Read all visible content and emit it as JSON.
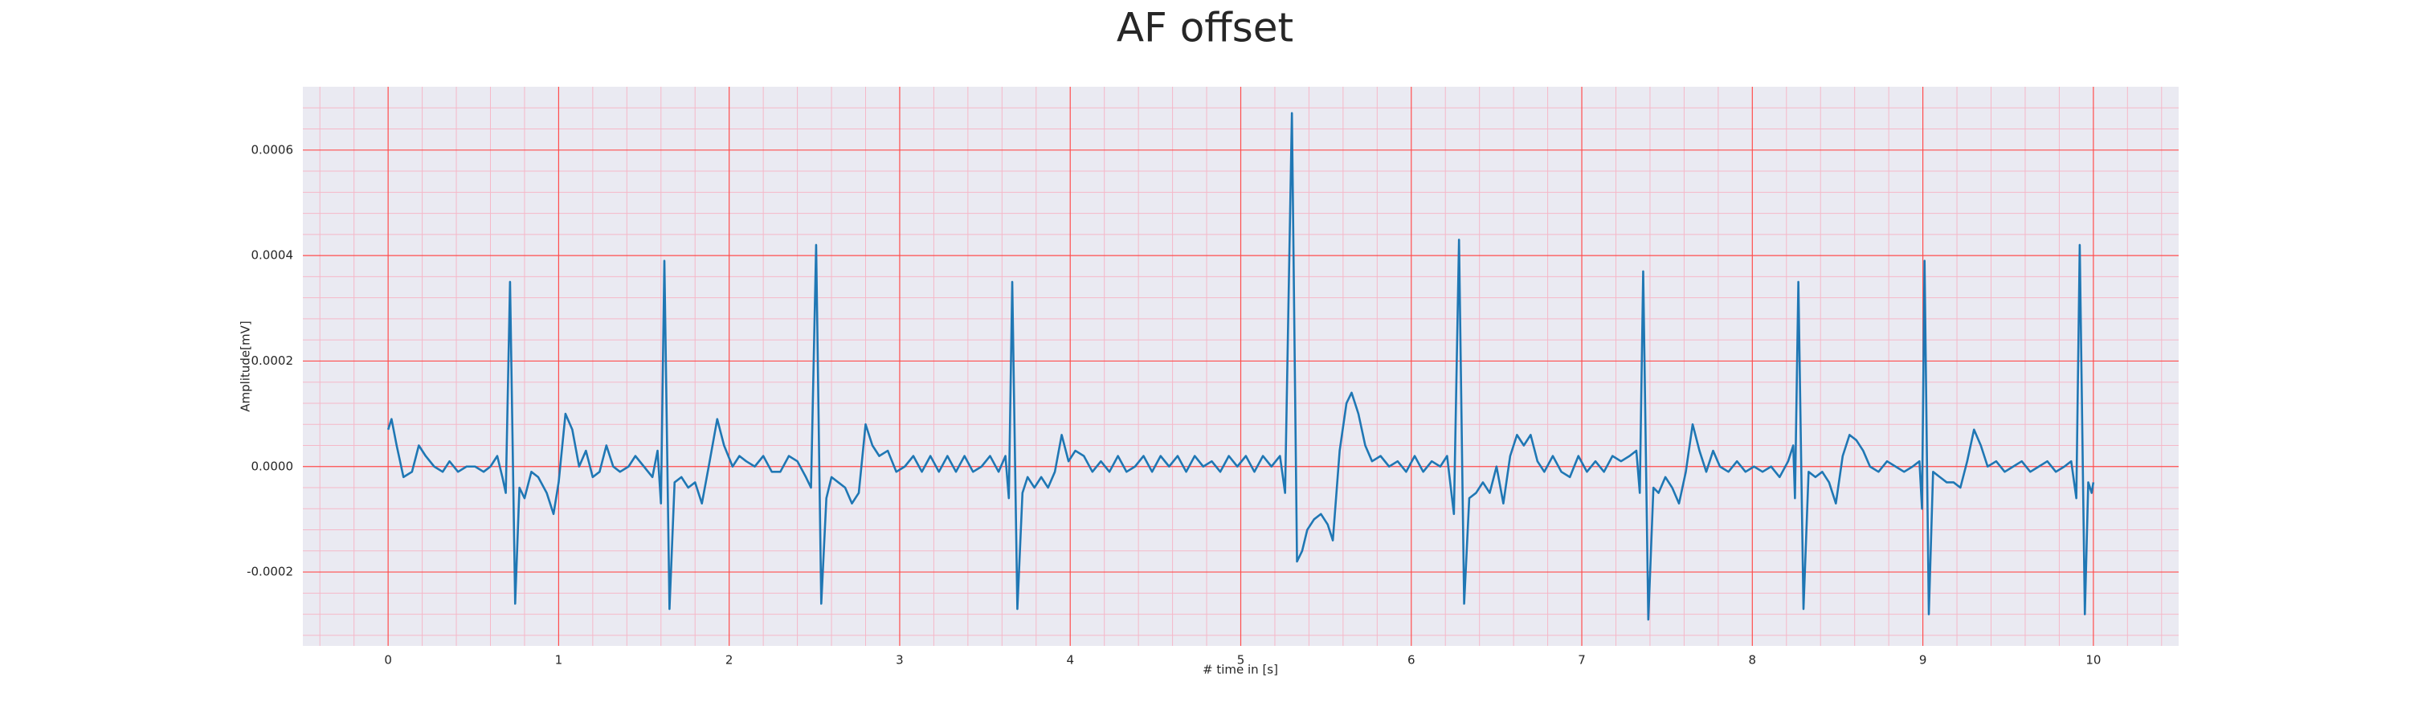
{
  "chart_data": {
    "type": "line",
    "title": "AF offset",
    "xlabel": "# time in [s]",
    "ylabel": "Amplitude[mV]",
    "color": "#1f77b4",
    "background": "#eaeaf2",
    "grid": true,
    "grid_color": "#ff4d4d",
    "minor_grid_color": "#f5b8c8",
    "xlim": [
      -0.5,
      10.5
    ],
    "ylim": [
      -0.00034,
      0.00072
    ],
    "xticks": [
      0,
      1,
      2,
      3,
      4,
      5,
      6,
      7,
      8,
      9,
      10
    ],
    "yticks": [
      -0.0002,
      {
        "value": 0,
        "label": "0.0000"
      },
      0.0002,
      0.0004,
      0.0006
    ],
    "xminorticks": [
      -0.4,
      -0.2,
      0.2,
      0.4,
      0.6,
      0.8,
      1.2,
      1.4,
      1.6,
      1.8,
      2.2,
      2.4,
      2.6,
      2.8,
      3.2,
      3.4,
      3.6,
      3.8,
      4.2,
      4.4,
      4.6,
      4.8,
      5.2,
      5.4,
      5.6,
      5.8,
      6.2,
      6.4,
      6.6,
      6.8,
      7.2,
      7.4,
      7.6,
      7.8,
      8.2,
      8.4,
      8.6,
      8.8,
      9.2,
      9.4,
      9.6,
      9.8,
      10.2,
      10.4
    ],
    "yminorticks": [
      -0.00032,
      -0.00028,
      -0.00024,
      -0.00016,
      -0.00012,
      -8e-05,
      -4e-05,
      4e-05,
      8e-05,
      0.00012,
      0.00016,
      0.00024,
      0.00028,
      0.00032,
      0.00036,
      0.00044,
      0.00048,
      0.00052,
      0.00056,
      0.00064,
      0.00068
    ],
    "x": [
      0,
      0.02,
      0.05,
      0.09,
      0.14,
      0.18,
      0.22,
      0.27,
      0.32,
      0.36,
      0.41,
      0.46,
      0.51,
      0.56,
      0.6,
      0.64,
      0.67,
      0.69,
      0.715,
      0.745,
      0.77,
      0.8,
      0.84,
      0.88,
      0.93,
      0.97,
      1.0,
      1.04,
      1.08,
      1.12,
      1.16,
      1.2,
      1.24,
      1.28,
      1.32,
      1.36,
      1.41,
      1.45,
      1.5,
      1.55,
      1.58,
      1.6,
      1.62,
      1.65,
      1.68,
      1.72,
      1.76,
      1.8,
      1.84,
      1.88,
      1.93,
      1.97,
      2.02,
      2.06,
      2.1,
      2.15,
      2.2,
      2.25,
      2.3,
      2.35,
      2.4,
      2.45,
      2.48,
      2.51,
      2.54,
      2.57,
      2.6,
      2.64,
      2.68,
      2.72,
      2.76,
      2.8,
      2.84,
      2.88,
      2.93,
      2.98,
      3.03,
      3.08,
      3.13,
      3.18,
      3.23,
      3.28,
      3.33,
      3.38,
      3.43,
      3.48,
      3.53,
      3.58,
      3.62,
      3.64,
      3.66,
      3.69,
      3.72,
      3.75,
      3.79,
      3.83,
      3.87,
      3.91,
      3.95,
      3.99,
      4.03,
      4.08,
      4.13,
      4.18,
      4.23,
      4.28,
      4.33,
      4.38,
      4.43,
      4.48,
      4.53,
      4.58,
      4.63,
      4.68,
      4.73,
      4.78,
      4.83,
      4.88,
      4.93,
      4.98,
      5.03,
      5.08,
      5.13,
      5.18,
      5.23,
      5.26,
      5.3,
      5.33,
      5.36,
      5.39,
      5.43,
      5.47,
      5.51,
      5.54,
      5.58,
      5.62,
      5.65,
      5.69,
      5.73,
      5.77,
      5.82,
      5.87,
      5.92,
      5.97,
      6.02,
      6.07,
      6.12,
      6.17,
      6.21,
      6.25,
      6.28,
      6.31,
      6.34,
      6.38,
      6.42,
      6.46,
      6.5,
      6.54,
      6.58,
      6.62,
      6.66,
      6.7,
      6.74,
      6.78,
      6.83,
      6.88,
      6.93,
      6.98,
      7.03,
      7.08,
      7.13,
      7.18,
      7.23,
      7.28,
      7.32,
      7.34,
      7.36,
      7.39,
      7.42,
      7.45,
      7.49,
      7.53,
      7.57,
      7.61,
      7.65,
      7.69,
      7.73,
      7.77,
      7.81,
      7.86,
      7.91,
      7.96,
      8.01,
      8.06,
      8.11,
      8.16,
      8.21,
      8.24,
      8.25,
      8.27,
      8.3,
      8.33,
      8.37,
      8.41,
      8.45,
      8.49,
      8.53,
      8.57,
      8.61,
      8.65,
      8.69,
      8.74,
      8.79,
      8.84,
      8.89,
      8.94,
      8.98,
      8.995,
      9.01,
      9.035,
      9.06,
      9.1,
      9.14,
      9.18,
      9.22,
      9.26,
      9.3,
      9.34,
      9.38,
      9.43,
      9.48,
      9.53,
      9.58,
      9.63,
      9.68,
      9.73,
      9.78,
      9.83,
      9.87,
      9.9,
      9.92,
      9.95,
      9.97,
      9.99,
      10.0
    ],
    "values": [
      7e-05,
      9e-05,
      4e-05,
      -2e-05,
      -1e-05,
      4e-05,
      2e-05,
      0.0,
      -1e-05,
      1e-05,
      -1e-05,
      0.0,
      0.0,
      -1e-05,
      0.0,
      2e-05,
      -2e-05,
      -5e-05,
      0.00035,
      -0.00026,
      -4e-05,
      -6e-05,
      -1e-05,
      -2e-05,
      -5e-05,
      -9e-05,
      -3e-05,
      0.0001,
      7e-05,
      0.0,
      3e-05,
      -2e-05,
      -1e-05,
      4e-05,
      0.0,
      -1e-05,
      0.0,
      2e-05,
      0.0,
      -2e-05,
      3e-05,
      -7e-05,
      0.00039,
      -0.00027,
      -3e-05,
      -2e-05,
      -4e-05,
      -3e-05,
      -7e-05,
      0.0,
      9e-05,
      4e-05,
      0.0,
      2e-05,
      1e-05,
      0.0,
      2e-05,
      -1e-05,
      -1e-05,
      2e-05,
      1e-05,
      -2e-05,
      -4e-05,
      0.00042,
      -0.00026,
      -6e-05,
      -2e-05,
      -3e-05,
      -4e-05,
      -7e-05,
      -5e-05,
      8e-05,
      4e-05,
      2e-05,
      3e-05,
      -1e-05,
      0.0,
      2e-05,
      -1e-05,
      2e-05,
      -1e-05,
      2e-05,
      -1e-05,
      2e-05,
      -1e-05,
      0.0,
      2e-05,
      -1e-05,
      2e-05,
      -6e-05,
      0.00035,
      -0.00027,
      -5e-05,
      -2e-05,
      -4e-05,
      -2e-05,
      -4e-05,
      -1e-05,
      6e-05,
      1e-05,
      3e-05,
      2e-05,
      -1e-05,
      1e-05,
      -1e-05,
      2e-05,
      -1e-05,
      0.0,
      2e-05,
      -1e-05,
      2e-05,
      0.0,
      2e-05,
      -1e-05,
      2e-05,
      0.0,
      1e-05,
      -1e-05,
      2e-05,
      0.0,
      2e-05,
      -1e-05,
      2e-05,
      0.0,
      2e-05,
      -5e-05,
      0.00067,
      -0.00018,
      -0.00016,
      -0.00012,
      -0.0001,
      -9e-05,
      -0.00011,
      -0.00014,
      3e-05,
      0.00012,
      0.00014,
      0.0001,
      4e-05,
      1e-05,
      2e-05,
      0.0,
      1e-05,
      -1e-05,
      2e-05,
      -1e-05,
      1e-05,
      0.0,
      2e-05,
      -9e-05,
      0.00043,
      -0.00026,
      -6e-05,
      -5e-05,
      -3e-05,
      -5e-05,
      0.0,
      -7e-05,
      2e-05,
      6e-05,
      4e-05,
      6e-05,
      1e-05,
      -1e-05,
      2e-05,
      -1e-05,
      -2e-05,
      2e-05,
      -1e-05,
      1e-05,
      -1e-05,
      2e-05,
      1e-05,
      2e-05,
      3e-05,
      -5e-05,
      0.00037,
      -0.00029,
      -4e-05,
      -5e-05,
      -2e-05,
      -4e-05,
      -7e-05,
      -1e-05,
      8e-05,
      3e-05,
      -1e-05,
      3e-05,
      0.0,
      -1e-05,
      1e-05,
      -1e-05,
      0.0,
      -1e-05,
      0.0,
      -2e-05,
      1e-05,
      4e-05,
      -6e-05,
      0.00035,
      -0.00027,
      -1e-05,
      -2e-05,
      -1e-05,
      -3e-05,
      -7e-05,
      2e-05,
      6e-05,
      5e-05,
      3e-05,
      0.0,
      -1e-05,
      1e-05,
      0.0,
      -1e-05,
      0.0,
      1e-05,
      -8e-05,
      0.00039,
      -0.00028,
      -1e-05,
      -2e-05,
      -3e-05,
      -3e-05,
      -4e-05,
      1e-05,
      7e-05,
      4e-05,
      0.0,
      1e-05,
      -1e-05,
      0.0,
      1e-05,
      -1e-05,
      0.0,
      1e-05,
      -1e-05,
      0.0,
      1e-05,
      -6e-05,
      0.00042,
      -0.00028,
      -3e-05,
      -5e-05,
      -3e-05
    ]
  }
}
